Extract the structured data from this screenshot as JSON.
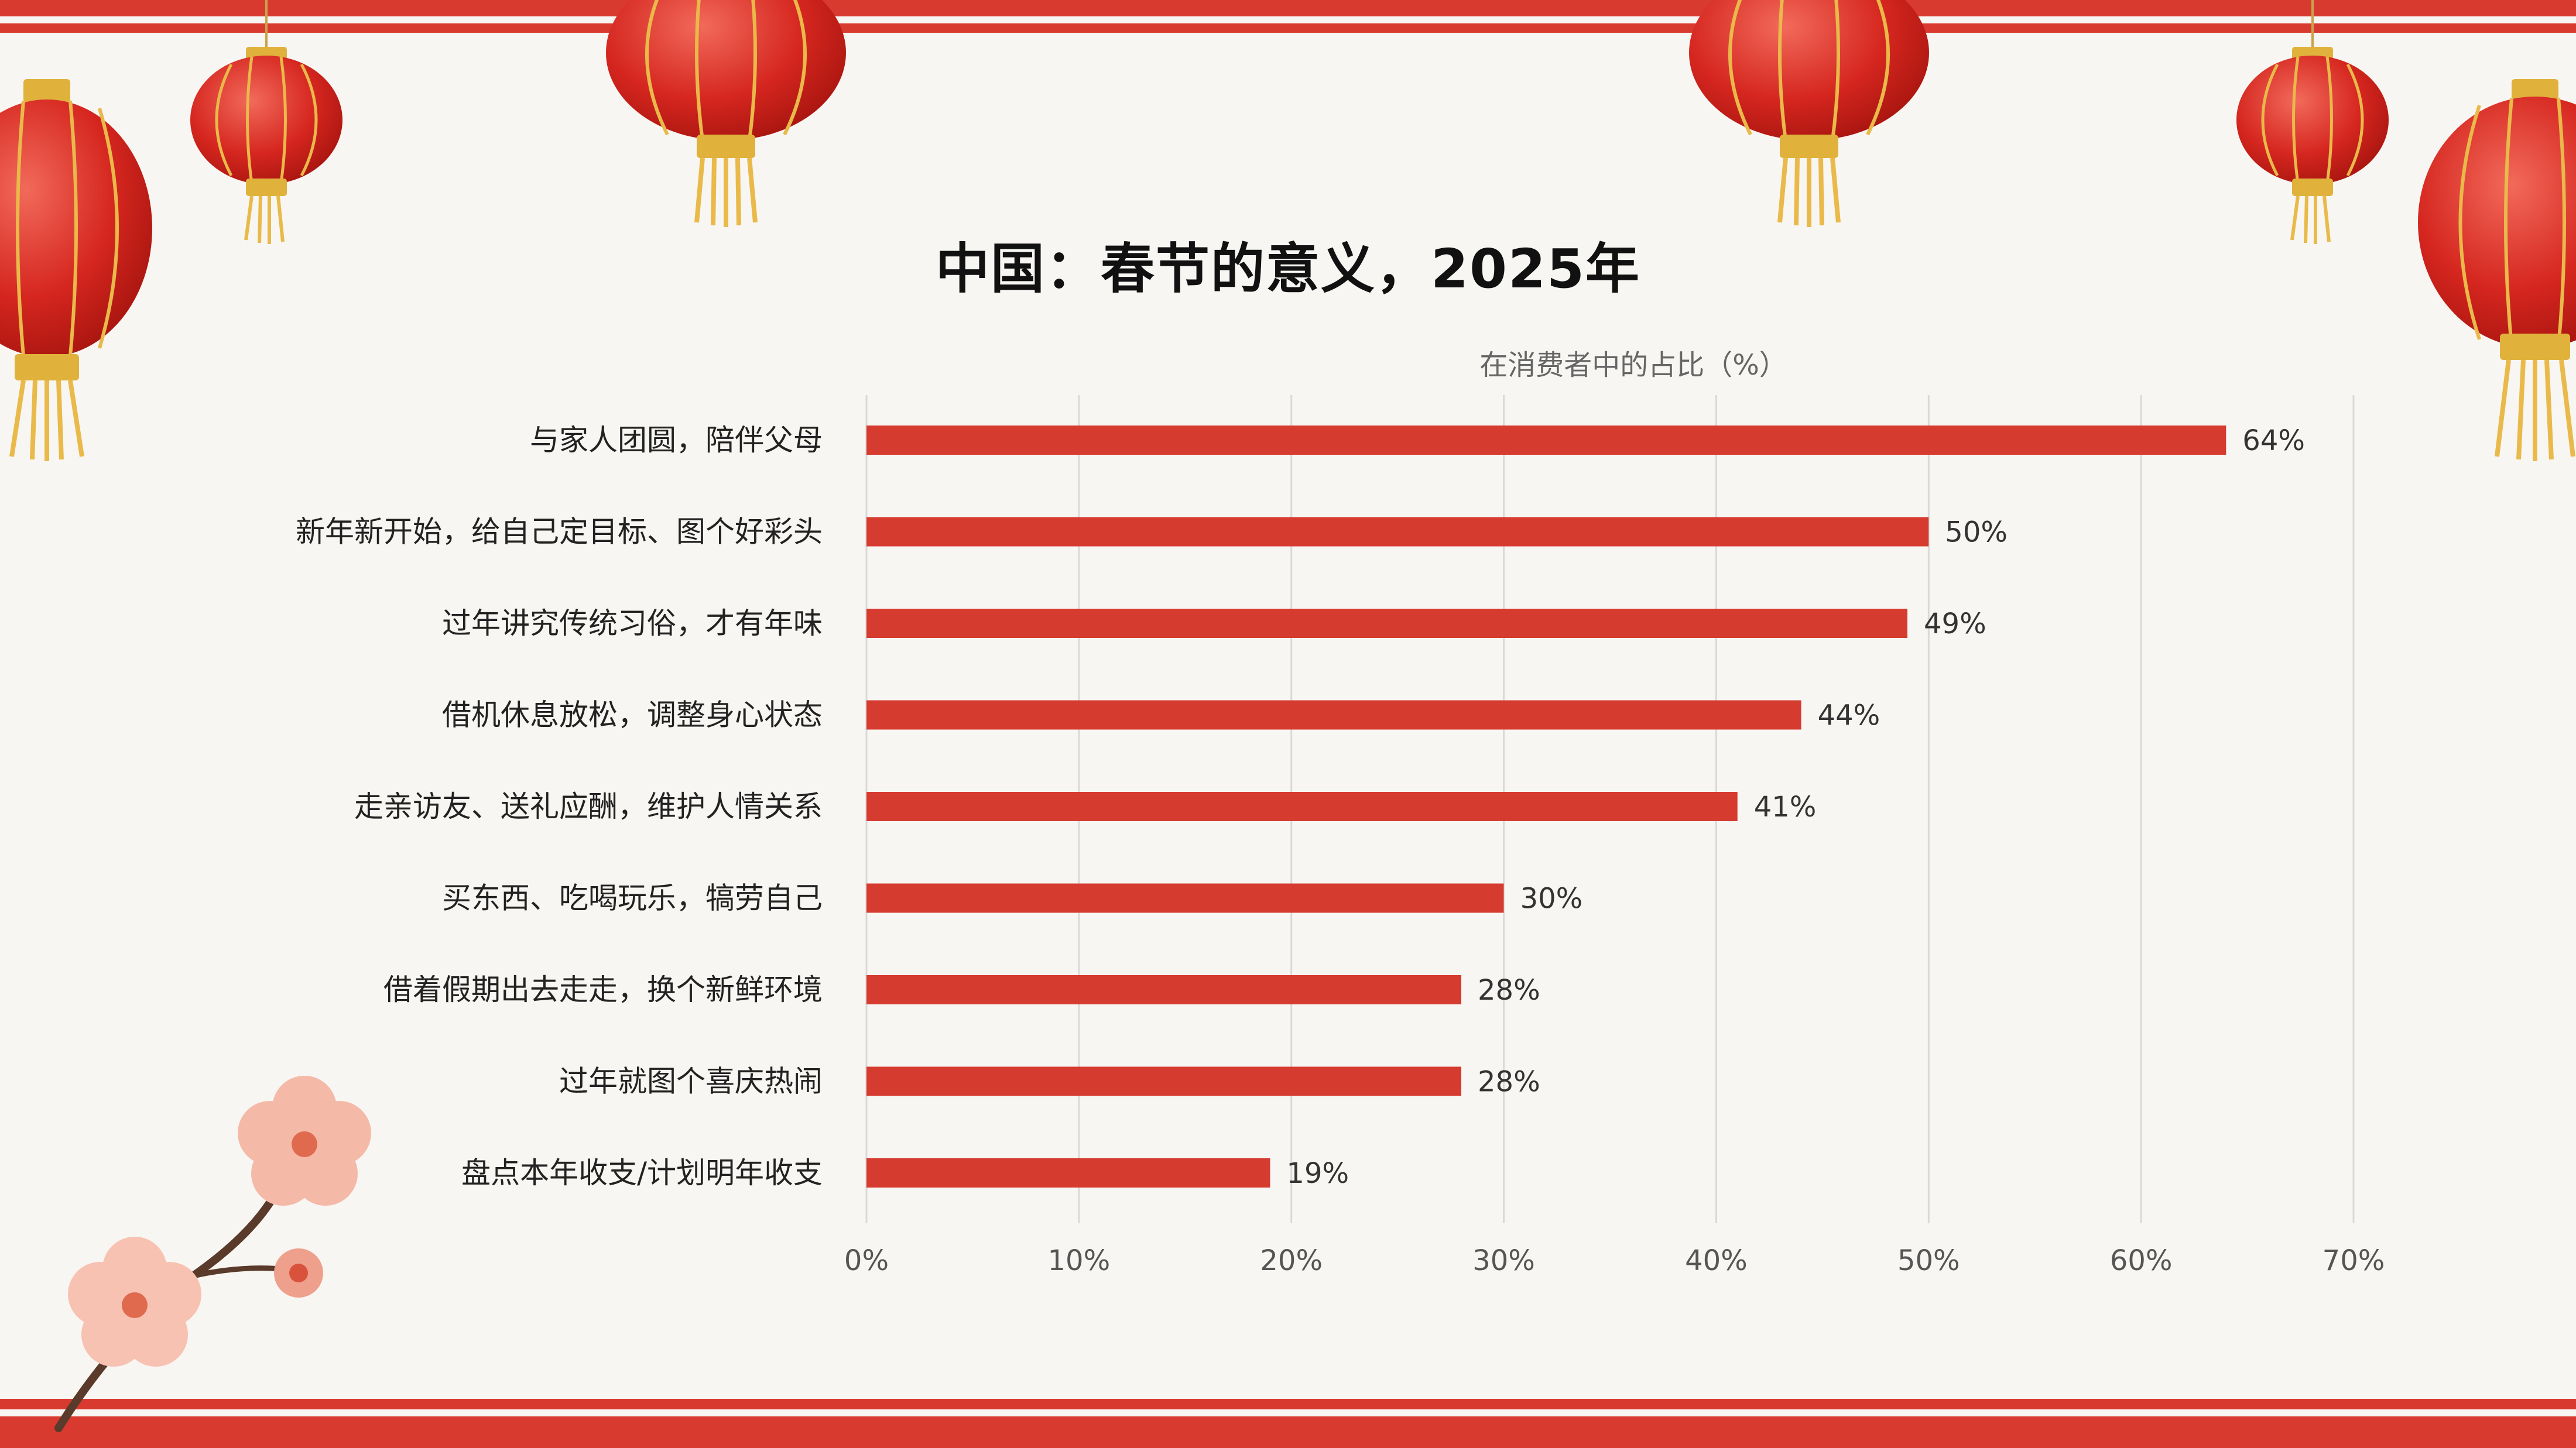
{
  "title": "中国：春节的意义，2025年",
  "colors": {
    "bar": "#d63b30",
    "band": "#d93a30",
    "background": "#f8f6f2",
    "grid": "#d9d9d9"
  },
  "chart_data": {
    "type": "bar",
    "orientation": "horizontal",
    "title": "中国：春节的意义，2025年",
    "xlabel": "在消费者中的占比（%）",
    "ylabel": "",
    "categories": [
      "与家人团圆，陪伴父母",
      "新年新开始，给自己定目标、图个好彩头",
      "过年讲究传统习俗，才有年味",
      "借机休息放松，调整身心状态",
      "走亲访友、送礼应酬，维护人情关系",
      "买东西、吃喝玩乐，犒劳自己",
      "借着假期出去走走，换个新鲜环境",
      "过年就图个喜庆热闹",
      "盘点本年收支/计划明年收支"
    ],
    "values": [
      64,
      50,
      49,
      44,
      41,
      30,
      28,
      28,
      19
    ],
    "value_labels": [
      "64%",
      "50%",
      "49%",
      "44%",
      "41%",
      "30%",
      "28%",
      "28%",
      "19%"
    ],
    "xlim": [
      0,
      70
    ],
    "xticks": [
      0,
      10,
      20,
      30,
      40,
      50,
      60,
      70
    ],
    "xtick_labels": [
      "0%",
      "10%",
      "20%",
      "30%",
      "40%",
      "50%",
      "60%",
      "70%"
    ],
    "grid": true,
    "legend": "none"
  },
  "decorations": {
    "lantern_icon": "red-lantern-icon",
    "blossom_icon": "plum-blossom-icon"
  }
}
